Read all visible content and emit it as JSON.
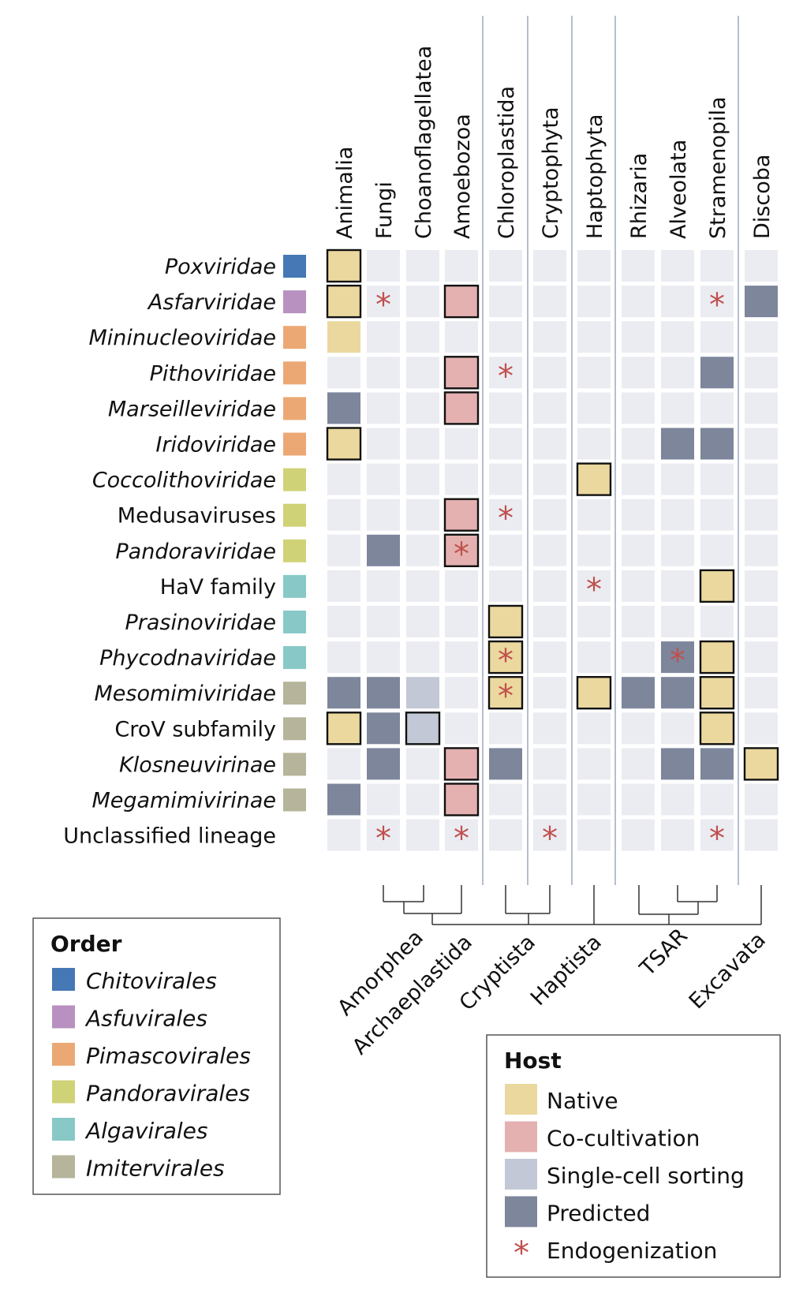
{
  "chart_data": {
    "type": "heatmap",
    "title": "",
    "columns": [
      "Animalia",
      "Fungi",
      "Choanoflagellatea",
      "Amoebozoa",
      "Chloroplastida",
      "Cryptophyta",
      "Haptophyta",
      "Rhizaria",
      "Alveolata",
      "Stramenopila",
      "Discoba"
    ],
    "column_group_breaks_after": [
      "Amoebozoa",
      "Chloroplastida",
      "Cryptophyta",
      "Haptophyta",
      "Stramenopila"
    ],
    "supergroups": [
      "Amorphea",
      "Archaeplastida",
      "Cryptista",
      "Haptista",
      "TSAR",
      "Excavata"
    ],
    "tree": "(((Fungi,Choanoflagellatea),Amoebozoa),(Chloroplastida,Cryptophyta),Haptophyta,(Rhizaria,(Alveolata,Stramenopila)),Discoba)",
    "rows": [
      {
        "name": "Poxviridae",
        "italic": true,
        "order": "Chitovirales",
        "cells": [
          "N",
          "",
          "",
          "",
          "",
          "",
          "",
          "",
          "",
          "",
          ""
        ]
      },
      {
        "name": "Asfarviridae",
        "italic": true,
        "order": "Asfuvirales",
        "cells": [
          "N",
          "E",
          "",
          "C",
          "",
          "",
          "",
          "",
          "",
          "E",
          "P"
        ]
      },
      {
        "name": "Mininucleoviridae",
        "italic": true,
        "order": "Pimascovirales",
        "cells": [
          "n",
          "",
          "",
          "",
          "",
          "",
          "",
          "",
          "",
          "",
          ""
        ]
      },
      {
        "name": "Pithoviridae",
        "italic": true,
        "order": "Pimascovirales",
        "cells": [
          "",
          "",
          "",
          "C",
          "E",
          "",
          "",
          "",
          "",
          "P",
          ""
        ]
      },
      {
        "name": "Marseilleviridae",
        "italic": true,
        "order": "Pimascovirales",
        "cells": [
          "P",
          "",
          "",
          "C",
          "",
          "",
          "",
          "",
          "",
          "",
          ""
        ]
      },
      {
        "name": "Iridoviridae",
        "italic": true,
        "order": "Pimascovirales",
        "cells": [
          "N",
          "",
          "",
          "",
          "",
          "",
          "",
          "",
          "P",
          "P",
          ""
        ]
      },
      {
        "name": "Coccolithoviridae",
        "italic": true,
        "order": "Pandoravirales",
        "cells": [
          "",
          "",
          "",
          "",
          "",
          "",
          "N",
          "",
          "",
          "",
          ""
        ]
      },
      {
        "name": "Medusaviruses",
        "italic": false,
        "order": "Pandoravirales",
        "cells": [
          "",
          "",
          "",
          "C",
          "E",
          "",
          "",
          "",
          "",
          "",
          ""
        ]
      },
      {
        "name": "Pandoraviridae",
        "italic": true,
        "order": "Pandoravirales",
        "cells": [
          "",
          "P",
          "",
          "C*",
          "",
          "",
          "",
          "",
          "",
          "",
          ""
        ]
      },
      {
        "name": "HaV family",
        "italic": false,
        "order": "Algavirales",
        "cells": [
          "",
          "",
          "",
          "",
          "",
          "",
          "E",
          "",
          "",
          "N",
          ""
        ]
      },
      {
        "name": "Prasinoviridae",
        "italic": true,
        "order": "Algavirales",
        "cells": [
          "",
          "",
          "",
          "",
          "N",
          "",
          "",
          "",
          "",
          "",
          ""
        ]
      },
      {
        "name": "Phycodnaviridae",
        "italic": true,
        "order": "Algavirales",
        "cells": [
          "",
          "",
          "",
          "",
          "N*",
          "",
          "",
          "",
          "P*",
          "N",
          ""
        ]
      },
      {
        "name": "Mesomimiviridae",
        "italic": true,
        "order": "Imitervirales",
        "cells": [
          "P",
          "P",
          "S",
          "",
          "N*",
          "",
          "N",
          "P",
          "P",
          "N",
          ""
        ]
      },
      {
        "name": "CroV subfamily",
        "italic": false,
        "order": "Imitervirales",
        "cells": [
          "N",
          "P",
          "s",
          "",
          "",
          "",
          "",
          "",
          "",
          "N",
          ""
        ]
      },
      {
        "name": "Klosneuvirinae",
        "italic": true,
        "order": "Imitervirales",
        "cells": [
          "",
          "P",
          "",
          "C",
          "P",
          "",
          "",
          "",
          "P",
          "P",
          "N"
        ]
      },
      {
        "name": "Megamimivirinae",
        "italic": true,
        "order": "Imitervirales",
        "cells": [
          "P",
          "",
          "",
          "C",
          "",
          "",
          "",
          "",
          "",
          "",
          ""
        ]
      },
      {
        "name": "Unclassified lineage",
        "italic": false,
        "order": null,
        "cells": [
          "",
          "E",
          "",
          "E",
          "",
          "E",
          "",
          "",
          "",
          "E",
          ""
        ]
      }
    ],
    "cell_code_legend": {
      "N": "Native (outlined)",
      "n": "Native",
      "C": "Co-cultivation (outlined)",
      "S": "Single-cell sorting",
      "s": "Single-cell sorting (outlined)",
      "P": "Predicted",
      "E": "Endogenization",
      "*": "with endogenization"
    }
  },
  "order_legend": {
    "title": "Order",
    "items": [
      {
        "label": "Chitovirales",
        "color": "#4578b4"
      },
      {
        "label": "Asfuvirales",
        "color": "#b891c0"
      },
      {
        "label": "Pimascovirales",
        "color": "#eca874"
      },
      {
        "label": "Pandoravirales",
        "color": "#cfd276"
      },
      {
        "label": "Algavirales",
        "color": "#88c9c7"
      },
      {
        "label": "Imitervirales",
        "color": "#b6b49a"
      }
    ]
  },
  "host_legend": {
    "title": "Host",
    "items": [
      {
        "key": "native",
        "label": "Native",
        "color": "#ebd89e"
      },
      {
        "key": "cocultivation",
        "label": "Co-cultivation",
        "color": "#e4b1b0"
      },
      {
        "key": "singlecell",
        "label": "Single-cell sorting",
        "color": "#c2c8d5"
      },
      {
        "key": "predicted",
        "label": "Predicted",
        "color": "#7d869b"
      },
      {
        "key": "endogenization",
        "label": "Endogenization",
        "color": "#c0504d",
        "symbol": "*"
      }
    ]
  },
  "colors": {
    "empty_cell": "#ebecf2",
    "divider": "#a3adc2",
    "outline": "#111111"
  }
}
